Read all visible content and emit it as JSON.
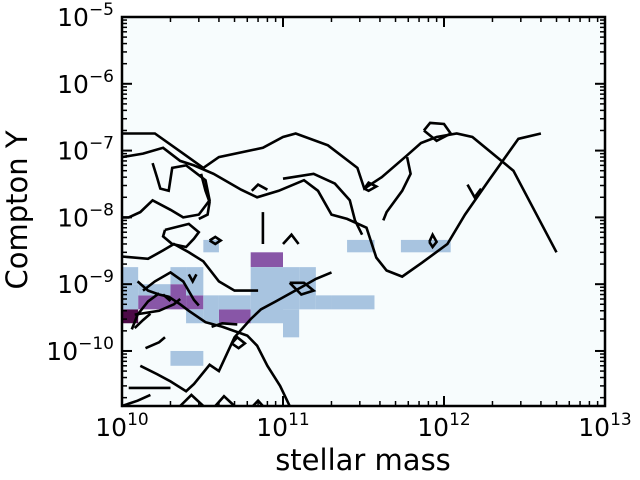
{
  "chart_data": {
    "type": "heatmap",
    "title": "",
    "xlabel": "stellar mass",
    "ylabel": "Compton Y",
    "xscale": "log",
    "yscale": "log",
    "xlim": [
      10000000000.0,
      10000000000000.0
    ],
    "ylim": [
      1.5e-11,
      1e-05
    ],
    "grid": false,
    "background_color": "#f7fcfd",
    "colormap": [
      "#f7fcfd",
      "#a8c4e0",
      "#8856a7",
      "#4d0a47"
    ],
    "x_ticks": [
      {
        "value": 10000000000.0,
        "base": "10",
        "exp": "10"
      },
      {
        "value": 100000000000.0,
        "base": "10",
        "exp": "11"
      },
      {
        "value": 1000000000000.0,
        "base": "10",
        "exp": "12"
      },
      {
        "value": 10000000000000.0,
        "base": "10",
        "exp": "13"
      }
    ],
    "y_ticks": [
      {
        "value": 1e-10,
        "base": "10",
        "exp": "−10"
      },
      {
        "value": 1e-09,
        "base": "10",
        "exp": "−9"
      },
      {
        "value": 1e-08,
        "base": "10",
        "exp": "−8"
      },
      {
        "value": 1e-07,
        "base": "10",
        "exp": "−7"
      },
      {
        "value": 1e-06,
        "base": "10",
        "exp": "−6"
      },
      {
        "value": 1e-05,
        "base": "10",
        "exp": "−5"
      }
    ],
    "cells": [
      {
        "x": [
          10000000000.0,
          12600000000.0
        ],
        "y": [
          2.6e-10,
          4.2e-10
        ],
        "level": 3
      },
      {
        "x": [
          12600000000.0,
          20000000000.0
        ],
        "y": [
          4.2e-10,
          6.8e-10
        ],
        "level": 2
      },
      {
        "x": [
          20000000000.0,
          25000000000.0
        ],
        "y": [
          4.2e-10,
          1e-09
        ],
        "level": 2
      },
      {
        "x": [
          25000000000.0,
          32000000000.0
        ],
        "y": [
          4.2e-10,
          6.8e-10
        ],
        "level": 2
      },
      {
        "x": [
          40000000000.0,
          63000000000.0
        ],
        "y": [
          2.6e-10,
          4.2e-10
        ],
        "level": 2
      },
      {
        "x": [
          63000000000.0,
          100000000000.0
        ],
        "y": [
          1.8e-09,
          3e-09
        ],
        "level": 2
      },
      {
        "x": [
          10000000000.0,
          12600000000.0
        ],
        "y": [
          1e-09,
          1.8e-09
        ],
        "level": 1
      },
      {
        "x": [
          10000000000.0,
          12600000000.0
        ],
        "y": [
          4.2e-10,
          1e-09
        ],
        "level": 1
      },
      {
        "x": [
          12600000000.0,
          20000000000.0
        ],
        "y": [
          6.8e-10,
          1e-09
        ],
        "level": 1
      },
      {
        "x": [
          20000000000.0,
          25000000000.0
        ],
        "y": [
          1e-09,
          1.8e-09
        ],
        "level": 1
      },
      {
        "x": [
          25000000000.0,
          32000000000.0
        ],
        "y": [
          6.8e-10,
          1.8e-09
        ],
        "level": 1
      },
      {
        "x": [
          25000000000.0,
          32000000000.0
        ],
        "y": [
          2.6e-10,
          4.2e-10
        ],
        "level": 1
      },
      {
        "x": [
          32000000000.0,
          40000000000.0
        ],
        "y": [
          2.6e-10,
          6.8e-10
        ],
        "level": 1
      },
      {
        "x": [
          40000000000.0,
          63000000000.0
        ],
        "y": [
          4.2e-10,
          6.8e-10
        ],
        "level": 1
      },
      {
        "x": [
          32000000000.0,
          40000000000.0
        ],
        "y": [
          3e-09,
          4.6e-09
        ],
        "level": 1
      },
      {
        "x": [
          20000000000.0,
          32000000000.0
        ],
        "y": [
          6e-11,
          1e-10
        ],
        "level": 1
      },
      {
        "x": [
          63000000000.0,
          100000000000.0
        ],
        "y": [
          2.6e-10,
          1.8e-09
        ],
        "level": 1
      },
      {
        "x": [
          100000000000.0,
          126000000000.0
        ],
        "y": [
          1.6e-10,
          4.2e-10
        ],
        "level": 1
      },
      {
        "x": [
          100000000000.0,
          126000000000.0
        ],
        "y": [
          4.2e-10,
          1.8e-09
        ],
        "level": 1
      },
      {
        "x": [
          126000000000.0,
          160000000000.0
        ],
        "y": [
          4.2e-10,
          1.8e-09
        ],
        "level": 1
      },
      {
        "x": [
          160000000000.0,
          200000000000.0
        ],
        "y": [
          4.2e-10,
          6.8e-10
        ],
        "level": 1
      },
      {
        "x": [
          200000000000.0,
          370000000000.0
        ],
        "y": [
          4.2e-10,
          6.8e-10
        ],
        "level": 1
      },
      {
        "x": [
          250000000000.0,
          370000000000.0
        ],
        "y": [
          3e-09,
          4.6e-09
        ],
        "level": 1
      },
      {
        "x": [
          540000000000.0,
          1100000000000.0
        ],
        "y": [
          3e-09,
          4.6e-09
        ],
        "level": 1
      }
    ],
    "contours": [
      [
        [
          10000000000.0,
          1.8e-07
        ],
        [
          16000000000.0,
          1.8e-07
        ],
        [
          24000000000.0,
          9e-08
        ],
        [
          32000000000.0,
          5.5e-08
        ],
        [
          40000000000.0,
          8e-08
        ],
        [
          75000000000.0,
          1.1e-07
        ],
        [
          100000000000.0,
          1.6e-07
        ],
        [
          120000000000.0,
          1.8e-07
        ],
        [
          190000000000.0,
          1.2e-07
        ],
        [
          290000000000.0,
          5.5e-08
        ],
        [
          320000000000.0,
          2.7e-08
        ],
        [
          410000000000.0,
          4e-08
        ],
        [
          590000000000.0,
          8.5e-08
        ],
        [
          720000000000.0,
          1.3e-07
        ],
        [
          900000000000.0,
          1.6e-07
        ],
        [
          1200000000000.0,
          1.8e-07
        ],
        [
          1500000000000.0,
          1.6e-07
        ],
        [
          2700000000000.0,
          5e-08
        ],
        [
          5000000000000.0,
          3e-09
        ]
      ],
      [
        [
          10000000000.0,
          8e-08
        ],
        [
          13500000000.0,
          9e-08
        ],
        [
          18000000000.0,
          1.1e-07
        ],
        [
          23000000000.0,
          7e-08
        ],
        [
          28000000000.0,
          6e-08
        ],
        [
          37000000000.0,
          4.5e-08
        ],
        [
          55000000000.0,
          2.6e-08
        ],
        [
          69000000000.0,
          2e-08
        ],
        [
          94000000000.0,
          2.5e-08
        ],
        [
          135000000000.0,
          3.6e-08
        ],
        [
          165000000000.0,
          2.5e-08
        ],
        [
          200000000000.0,
          1.1e-08
        ],
        [
          250000000000.0,
          9.5e-09
        ],
        [
          330000000000.0,
          7e-09
        ],
        [
          380000000000.0,
          2.5e-09
        ],
        [
          440000000000.0,
          1.6e-09
        ],
        [
          550000000000.0,
          1.3e-09
        ],
        [
          730000000000.0,
          2.1e-09
        ],
        [
          1050000000000.0,
          4e-09
        ],
        [
          1350000000000.0,
          1.1e-08
        ],
        [
          1900000000000.0,
          3.6e-08
        ],
        [
          2900000000000.0,
          1.5e-07
        ],
        [
          4000000000000.0,
          1.8e-07
        ]
      ],
      [
        [
          15500000000.0,
          6.5e-08
        ],
        [
          16500000000.0,
          4e-08
        ],
        [
          17300000000.0,
          2.7e-08
        ],
        [
          19500000000.0,
          2.5e-08
        ],
        [
          20500000000.0,
          5.5e-08
        ],
        [
          25000000000.0,
          6e-08
        ],
        [
          33000000000.0,
          3.6e-08
        ],
        [
          35000000000.0,
          1.8e-08
        ],
        [
          30000000000.0,
          1.1e-08
        ],
        [
          24000000000.0,
          1e-08
        ],
        [
          20000000000.0,
          1.3e-08
        ],
        [
          15500000000.0,
          1.8e-08
        ],
        [
          13000000000.0,
          1.2e-08
        ],
        [
          11000000000.0,
          1e-08
        ],
        [
          10000000000.0,
          1e-08
        ]
      ],
      [
        [
          18500000000.0,
          6.5e-09
        ],
        [
          26000000000.0,
          8e-09
        ],
        [
          30000000000.0,
          6e-09
        ],
        [
          28000000000.0,
          4.8e-09
        ],
        [
          25000000000.0,
          3.6e-09
        ],
        [
          20500000000.0,
          4e-09
        ],
        [
          18000000000.0,
          5.2e-09
        ],
        [
          18500000000.0,
          6.5e-09
        ]
      ],
      [
        [
          10000000000.0,
          2.6e-09
        ],
        [
          14500000000.0,
          2.4e-09
        ],
        [
          18000000000.0,
          3.2e-09
        ],
        [
          21000000000.0,
          4e-09
        ],
        [
          26000000000.0,
          3e-09
        ],
        [
          32000000000.0,
          2.2e-09
        ],
        [
          40000000000.0,
          1.1e-09
        ],
        [
          50000000000.0,
          8e-10
        ],
        [
          70000000000.0,
          8e-10
        ]
      ],
      [
        [
          12500000000.0,
          1.1e-09
        ],
        [
          14500000000.0,
          8e-10
        ],
        [
          17000000000.0,
          7e-10
        ],
        [
          19500000000.0,
          6.5e-10
        ],
        [
          23000000000.0,
          5e-10
        ],
        [
          26000000000.0,
          4e-10
        ],
        [
          33000000000.0,
          2.7e-10
        ],
        [
          42000000000.0,
          2.3e-10
        ],
        [
          60000000000.0,
          1.7e-10
        ],
        [
          69000000000.0,
          1.2e-10
        ],
        [
          80000000000.0,
          6e-11
        ],
        [
          96000000000.0,
          3e-11
        ],
        [
          110000000000.0,
          1.5e-11
        ]
      ],
      [
        [
          13500000000.0,
          8e-10
        ],
        [
          16000000000.0,
          1.1e-09
        ],
        [
          20000000000.0,
          1.5e-09
        ],
        [
          24000000000.0,
          1.1e-09
        ],
        [
          28000000000.0,
          5.8e-10
        ],
        [
          30000000000.0,
          4.8e-10
        ]
      ],
      [
        [
          12000000000.0,
          3.5e-10
        ],
        [
          17000000000.0,
          4e-10
        ],
        [
          21000000000.0,
          5e-10
        ],
        [
          23000000000.0,
          6e-10
        ]
      ],
      [
        [
          12000000000.0,
          2.2e-10
        ],
        [
          13500000000.0,
          2.9e-10
        ],
        [
          15000000000.0,
          3.6e-10
        ]
      ],
      [
        [
          18500000000.0,
          1.6e-10
        ],
        [
          17000000000.0,
          1.35e-10
        ],
        [
          14000000000.0,
          1.1e-10
        ]
      ],
      [
        [
          13000000000.0,
          6e-11
        ],
        [
          16500000000.0,
          4.5e-11
        ],
        [
          20000000000.0,
          3.5e-11
        ],
        [
          25000000000.0,
          2.5e-11
        ],
        [
          28000000000.0,
          3.2e-11
        ],
        [
          35000000000.0,
          6.2e-11
        ],
        [
          40000000000.0,
          5e-11
        ],
        [
          50000000000.0,
          1.6e-10
        ],
        [
          63000000000.0,
          3e-10
        ],
        [
          73000000000.0,
          4.2e-10
        ],
        [
          90000000000.0,
          5.5e-10
        ],
        [
          130000000000.0,
          9e-10
        ],
        [
          160000000000.0,
          1.2e-09
        ],
        [
          200000000000.0,
          1.5e-09
        ]
      ],
      [
        [
          11000000000.0,
          2.8e-11
        ],
        [
          14500000000.0,
          2.8e-11
        ],
        [
          20000000000.0,
          2.8e-11
        ]
      ],
      [
        [
          10000000000.0,
          1.5e-11
        ],
        [
          12500000000.0,
          1.8e-11
        ],
        [
          15000000000.0,
          2.2e-11
        ]
      ],
      [
        [
          23000000000.0,
          1.5e-11
        ],
        [
          27000000000.0,
          2.2e-11
        ],
        [
          32000000000.0,
          1.5e-11
        ]
      ],
      [
        [
          38000000000.0,
          1.5e-11
        ],
        [
          43000000000.0,
          2.1e-11
        ],
        [
          50000000000.0,
          1.5e-11
        ]
      ],
      [
        [
          65000000000.0,
          1.5e-11
        ],
        [
          70000000000.0,
          1.8e-11
        ],
        [
          75000000000.0,
          1.5e-11
        ]
      ],
      [
        [
          31000000000.0,
          4.5e-08
        ],
        [
          33000000000.0,
          2.5e-08
        ],
        [
          35000000000.0,
          1.7e-08
        ],
        [
          34000000000.0,
          1.1e-08
        ],
        [
          30000000000.0,
          9.5e-09
        ]
      ],
      [
        [
          64000000000.0,
          2.5e-08
        ],
        [
          70000000000.0,
          3.1e-08
        ],
        [
          80000000000.0,
          2.6e-08
        ]
      ],
      [
        [
          75000000000.0,
          1.2e-08
        ],
        [
          75000000000.0,
          4e-09
        ]
      ],
      [
        [
          100000000000.0,
          3.8e-08
        ],
        [
          155000000000.0,
          4.5e-08
        ],
        [
          210000000000.0,
          3.2e-08
        ],
        [
          260000000000.0,
          1.8e-08
        ],
        [
          280000000000.0,
          9e-09
        ],
        [
          310000000000.0,
          5.5e-09
        ]
      ],
      [
        [
          320000000000.0,
          2.7e-08
        ],
        [
          340000000000.0,
          3.3e-08
        ],
        [
          380000000000.0,
          2.9e-08
        ],
        [
          340000000000.0,
          2.5e-08
        ],
        [
          320000000000.0,
          2.7e-08
        ]
      ],
      [
        [
          590000000000.0,
          8e-08
        ],
        [
          620000000000.0,
          4.5e-08
        ],
        [
          550000000000.0,
          2.5e-08
        ],
        [
          440000000000.0,
          1.2e-08
        ],
        [
          420000000000.0,
          9e-09
        ]
      ],
      [
        [
          750000000000.0,
          2e-07
        ],
        [
          900000000000.0,
          1.4e-07
        ],
        [
          1100000000000.0,
          1.8e-07
        ],
        [
          1000000000000.0,
          2.5e-07
        ],
        [
          820000000000.0,
          2.6e-07
        ],
        [
          750000000000.0,
          2e-07
        ]
      ],
      [
        [
          1400000000000.0,
          3.1e-08
        ],
        [
          1550000000000.0,
          2e-08
        ],
        [
          1700000000000.0,
          2.7e-08
        ]
      ],
      [
        [
          26000000000.0,
          1.4e-09
        ],
        [
          27500000000.0,
          1.1e-09
        ],
        [
          29000000000.0,
          1.4e-09
        ]
      ],
      [
        [
          35000000000.0,
          4.5e-09
        ],
        [
          38000000000.0,
          5.1e-09
        ],
        [
          41000000000.0,
          4.5e-09
        ],
        [
          38000000000.0,
          4e-09
        ],
        [
          35000000000.0,
          4.5e-09
        ]
      ],
      [
        [
          36000000000.0,
          2.3e-10
        ],
        [
          42000000000.0,
          2.6e-10
        ],
        [
          52000000000.0,
          2.5e-10
        ]
      ],
      [
        [
          110000000000.0,
          1.05e-09
        ],
        [
          130000000000.0,
          7e-10
        ],
        [
          155000000000.0,
          8e-10
        ],
        [
          135000000000.0,
          1.05e-09
        ],
        [
          110000000000.0,
          1.05e-09
        ]
      ],
      [
        [
          100000000000.0,
          4e-09
        ],
        [
          113000000000.0,
          5.5e-09
        ],
        [
          125000000000.0,
          4e-09
        ]
      ],
      [
        [
          48000000000.0,
          1.3e-10
        ],
        [
          52000000000.0,
          1.6e-10
        ],
        [
          58000000000.0,
          1.3e-10
        ],
        [
          53000000000.0,
          1.1e-10
        ],
        [
          48000000000.0,
          1.3e-10
        ]
      ],
      [
        [
          810000000000.0,
          4.3e-09
        ],
        [
          850000000000.0,
          5.5e-09
        ],
        [
          900000000000.0,
          4.3e-09
        ],
        [
          850000000000.0,
          3.6e-09
        ],
        [
          810000000000.0,
          4.3e-09
        ]
      ],
      [
        [
          18000000000.0,
          7e-10
        ],
        [
          20000000000.0,
          5.6e-10
        ]
      ],
      [
        [
          17000000000.0,
          7.3e-10
        ],
        [
          14500000000.0,
          5.5e-10
        ],
        [
          12500000000.0,
          3.5e-10
        ],
        [
          11500000000.0,
          2.1e-10
        ]
      ]
    ]
  }
}
